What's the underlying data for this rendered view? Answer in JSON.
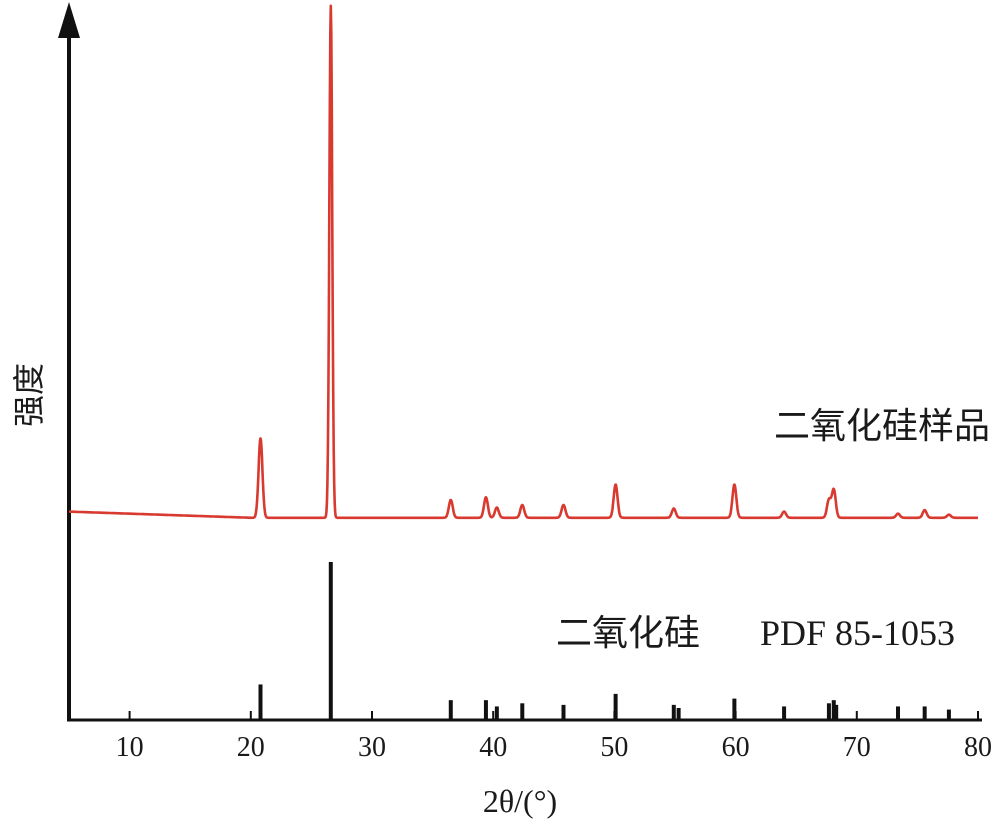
{
  "chart_data": {
    "type": "line",
    "xlabel": "2θ/(°)",
    "ylabel": "强度",
    "xlim": [
      5,
      80
    ],
    "xticks": [
      10,
      20,
      30,
      40,
      50,
      60,
      70,
      80
    ],
    "grid": false,
    "colors": {
      "sample": "#d83a30",
      "axis": "#111111",
      "reference": "#111111"
    },
    "series": [
      {
        "name": "二氧化硅样品",
        "baseline": 0.02,
        "peaks": [
          {
            "x": 20.8,
            "y": 0.155
          },
          {
            "x": 26.6,
            "y": 1.0
          },
          {
            "x": 36.5,
            "y": 0.035
          },
          {
            "x": 39.4,
            "y": 0.04
          },
          {
            "x": 40.3,
            "y": 0.02
          },
          {
            "x": 42.4,
            "y": 0.025
          },
          {
            "x": 45.8,
            "y": 0.025
          },
          {
            "x": 50.1,
            "y": 0.065
          },
          {
            "x": 54.9,
            "y": 0.018
          },
          {
            "x": 59.9,
            "y": 0.065
          },
          {
            "x": 64.0,
            "y": 0.012
          },
          {
            "x": 67.7,
            "y": 0.035
          },
          {
            "x": 68.1,
            "y": 0.055
          },
          {
            "x": 73.4,
            "y": 0.008
          },
          {
            "x": 75.6,
            "y": 0.015
          },
          {
            "x": 77.6,
            "y": 0.006
          }
        ]
      },
      {
        "name": "二氧化硅",
        "name_suffix": "PDF 85-1053",
        "type": "stick",
        "sticks": [
          {
            "x": 20.8,
            "y": 0.22
          },
          {
            "x": 26.6,
            "y": 1.0
          },
          {
            "x": 36.5,
            "y": 0.12
          },
          {
            "x": 39.4,
            "y": 0.12
          },
          {
            "x": 40.3,
            "y": 0.08
          },
          {
            "x": 42.4,
            "y": 0.1
          },
          {
            "x": 45.8,
            "y": 0.09
          },
          {
            "x": 50.1,
            "y": 0.16
          },
          {
            "x": 54.9,
            "y": 0.09
          },
          {
            "x": 55.3,
            "y": 0.07
          },
          {
            "x": 59.9,
            "y": 0.13
          },
          {
            "x": 64.0,
            "y": 0.08
          },
          {
            "x": 67.7,
            "y": 0.1
          },
          {
            "x": 68.1,
            "y": 0.12
          },
          {
            "x": 68.3,
            "y": 0.09
          },
          {
            "x": 73.4,
            "y": 0.08
          },
          {
            "x": 75.6,
            "y": 0.08
          },
          {
            "x": 77.6,
            "y": 0.06
          }
        ]
      }
    ]
  }
}
